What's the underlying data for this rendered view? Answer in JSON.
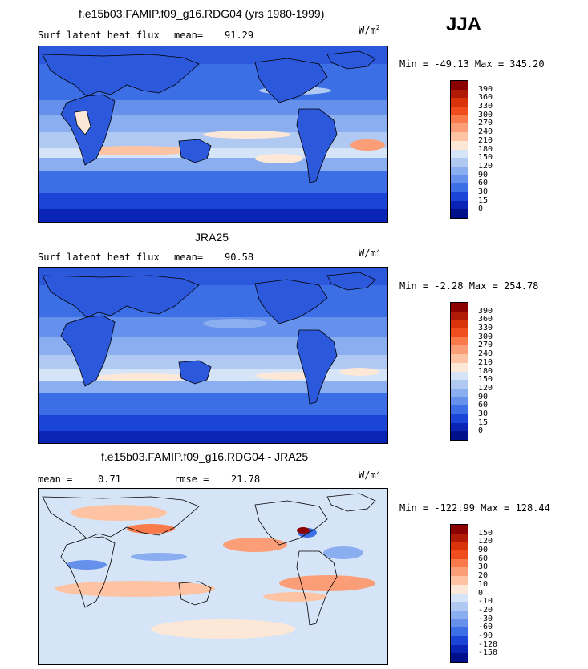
{
  "season": "JJA",
  "units": "W/m²",
  "panels": [
    {
      "title": "f.e15b03.FAMIP.f09_g16.RDG04 (yrs 1980-1999)",
      "left_label": "Surf latent heat flux",
      "stat_label": "mean=",
      "stat_value": "91.29",
      "minmax": "Min = -49.13 Max = 345.20",
      "colorbar": {
        "labels": [
          "390",
          "360",
          "330",
          "300",
          "270",
          "240",
          "210",
          "180",
          "150",
          "120",
          "90",
          "60",
          "30",
          "15",
          "0"
        ],
        "colors": [
          "#8b0000",
          "#b01a06",
          "#d9330c",
          "#f04d1e",
          "#f97a4a",
          "#fb9e77",
          "#fdc3a3",
          "#fde8d8",
          "#d6e4f7",
          "#b0c9f2",
          "#8aaef0",
          "#6590ec",
          "#3c6fe6",
          "#1a45d6",
          "#0a24b6",
          "#000f8a"
        ]
      }
    },
    {
      "title": "JRA25",
      "left_label": "Surf latent heat flux",
      "stat_label": "mean=",
      "stat_value": "90.58",
      "minmax": "Min =  -2.28 Max = 254.78",
      "colorbar": {
        "labels": [
          "390",
          "360",
          "330",
          "300",
          "270",
          "240",
          "210",
          "180",
          "150",
          "120",
          "90",
          "60",
          "30",
          "15",
          "0"
        ],
        "colors": [
          "#8b0000",
          "#b01a06",
          "#d9330c",
          "#f04d1e",
          "#f97a4a",
          "#fb9e77",
          "#fdc3a3",
          "#fde8d8",
          "#d6e4f7",
          "#b0c9f2",
          "#8aaef0",
          "#6590ec",
          "#3c6fe6",
          "#1a45d6",
          "#0a24b6",
          "#000f8a"
        ]
      }
    },
    {
      "title": "f.e15b03.FAMIP.f09_g16.RDG04 - JRA25",
      "left_label": "mean =",
      "left_value": "0.71",
      "stat_label": "rmse =",
      "stat_value": "21.78",
      "minmax": "Min = -122.99 Max = 128.44",
      "colorbar": {
        "labels": [
          "150",
          "120",
          "90",
          "60",
          "30",
          "20",
          "10",
          "0",
          "-10",
          "-20",
          "-30",
          "-60",
          "-90",
          "-120",
          "-150"
        ],
        "colors": [
          "#8b0000",
          "#b01a06",
          "#d9330c",
          "#f04d1e",
          "#f97a4a",
          "#fb9e77",
          "#fdc3a3",
          "#fde8d8",
          "#d6e4f7",
          "#b0c9f2",
          "#8aaef0",
          "#6590ec",
          "#3c6fe6",
          "#1a45d6",
          "#0a24b6",
          "#000f8a"
        ]
      }
    }
  ]
}
